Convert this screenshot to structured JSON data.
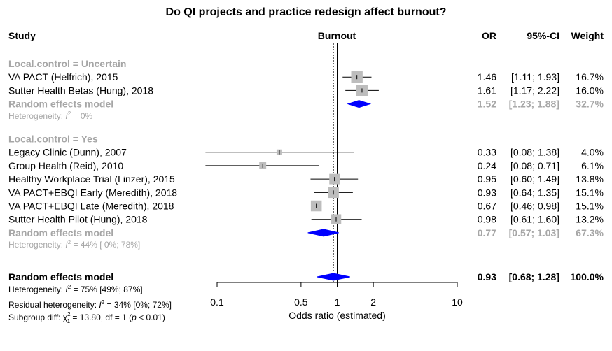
{
  "chart_data": {
    "type": "forest",
    "title": "Do QI projects and practice redesign affect burnout?",
    "headers": {
      "study": "Study",
      "plot": "Burnout",
      "or": "OR",
      "ci": "95%-CI",
      "weight": "Weight"
    },
    "scale": "log",
    "xlim": [
      0.1,
      10
    ],
    "ticks": [
      {
        "value": 0.1,
        "label": "0.1"
      },
      {
        "value": 0.5,
        "label": "0.5"
      },
      {
        "value": 1,
        "label": "1"
      },
      {
        "value": 2,
        "label": "2"
      },
      {
        "value": 10,
        "label": "10"
      }
    ],
    "xlabel": "Odds ratio (estimated)",
    "reference_line": 1,
    "pooled_line": 0.93,
    "colors": {
      "text": "#000000",
      "subgroup": "#a6a6a6",
      "box": "#bdbdbd",
      "diamond": "#0000ff",
      "line": "#000000"
    },
    "subgroups": [
      {
        "label": "Local.control = Uncertain",
        "studies": [
          {
            "study": "VA PACT (Helfrich), 2015",
            "or": 1.46,
            "lo": 1.11,
            "hi": 1.93,
            "weight": 16.7,
            "or_text": "1.46",
            "ci_text": "[1.11; 1.93]",
            "weight_text": "16.7%"
          },
          {
            "study": "Sutter Health Betas (Hung), 2018",
            "or": 1.61,
            "lo": 1.17,
            "hi": 2.22,
            "weight": 16.0,
            "or_text": "1.61",
            "ci_text": "[1.17; 2.22]",
            "weight_text": "16.0%"
          }
        ],
        "model": {
          "label": "Random effects model",
          "or": 1.52,
          "lo": 1.23,
          "hi": 1.88,
          "or_text": "1.52",
          "ci_text": "[1.23; 1.88]",
          "weight_text": "32.7%"
        },
        "heterogeneity": {
          "prefix": "Heterogeneity: ",
          "I": "I",
          "sup": "2",
          "suffix": " = 0%"
        }
      },
      {
        "label": "Local.control = Yes",
        "studies": [
          {
            "study": "Legacy Clinic (Dunn), 2007",
            "or": 0.33,
            "lo": 0.08,
            "hi": 1.38,
            "weight": 4.0,
            "or_text": "0.33",
            "ci_text": "[0.08; 1.38]",
            "weight_text": "4.0%"
          },
          {
            "study": "Group Health (Reid), 2010",
            "or": 0.24,
            "lo": 0.08,
            "hi": 0.71,
            "weight": 6.1,
            "or_text": "0.24",
            "ci_text": "[0.08; 0.71]",
            "weight_text": "6.1%"
          },
          {
            "study": "Healthy Workplace Trial (Linzer), 2015",
            "or": 0.95,
            "lo": 0.6,
            "hi": 1.49,
            "weight": 13.8,
            "or_text": "0.95",
            "ci_text": "[0.60; 1.49]",
            "weight_text": "13.8%"
          },
          {
            "study": "VA PACT+EBQI Early (Meredith), 2018",
            "or": 0.93,
            "lo": 0.64,
            "hi": 1.35,
            "weight": 15.1,
            "or_text": "0.93",
            "ci_text": "[0.64; 1.35]",
            "weight_text": "15.1%"
          },
          {
            "study": "VA PACT+EBQI Late (Meredith), 2018",
            "or": 0.67,
            "lo": 0.46,
            "hi": 0.98,
            "weight": 15.1,
            "or_text": "0.67",
            "ci_text": "[0.46; 0.98]",
            "weight_text": "15.1%"
          },
          {
            "study": "Sutter Health Pilot (Hung), 2018",
            "or": 0.98,
            "lo": 0.61,
            "hi": 1.6,
            "weight": 13.2,
            "or_text": "0.98",
            "ci_text": "[0.61; 1.60]",
            "weight_text": "13.2%"
          }
        ],
        "model": {
          "label": "Random effects model",
          "or": 0.77,
          "lo": 0.57,
          "hi": 1.03,
          "or_text": "0.77",
          "ci_text": "[0.57; 1.03]",
          "weight_text": "67.3%"
        },
        "heterogeneity": {
          "prefix": "Heterogeneity: ",
          "I": "I",
          "sup": "2",
          "suffix": " = 44% [ 0%; 78%]"
        }
      }
    ],
    "overall": {
      "label": "Random effects model",
      "or": 0.93,
      "lo": 0.68,
      "hi": 1.28,
      "or_text": "0.93",
      "ci_text": "[0.68; 1.28]",
      "weight_text": "100.0%",
      "heterogeneity": {
        "prefix": "Heterogeneity: ",
        "I": "I",
        "sup": "2",
        "suffix": " = 75% [49%; 87%]"
      },
      "residual": {
        "prefix": "Residual heterogeneity: ",
        "I": "I",
        "sup": "2",
        "suffix": " = 34% [0%; 72%]"
      },
      "subgroup_diff": {
        "prefix": "Subgroup diff: ",
        "chi": "χ",
        "sup": "2",
        "sub": "1",
        "mid": " = 13.80, df = 1 (",
        "p": "p",
        "suffix": " < 0.01)"
      }
    }
  }
}
